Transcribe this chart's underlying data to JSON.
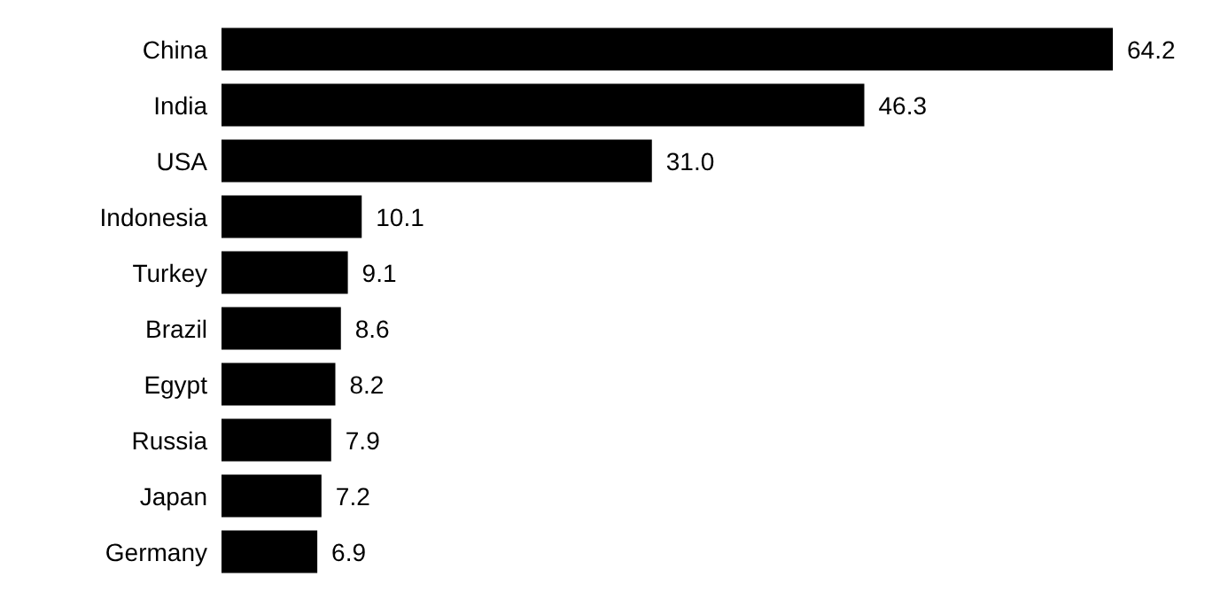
{
  "chart_data": {
    "type": "bar",
    "orientation": "horizontal",
    "categories": [
      "China",
      "India",
      "USA",
      "Indonesia",
      "Turkey",
      "Brazil",
      "Egypt",
      "Russia",
      "Japan",
      "Germany"
    ],
    "values": [
      64.2,
      46.3,
      31.0,
      10.1,
      9.1,
      8.6,
      8.2,
      7.9,
      7.2,
      6.9
    ],
    "value_labels": [
      "64.2",
      "46.3",
      "31.0",
      "10.1",
      "9.1",
      "8.6",
      "8.2",
      "7.9",
      "7.2",
      "6.9"
    ],
    "color": "#000000",
    "tick_labels": "y"
  }
}
